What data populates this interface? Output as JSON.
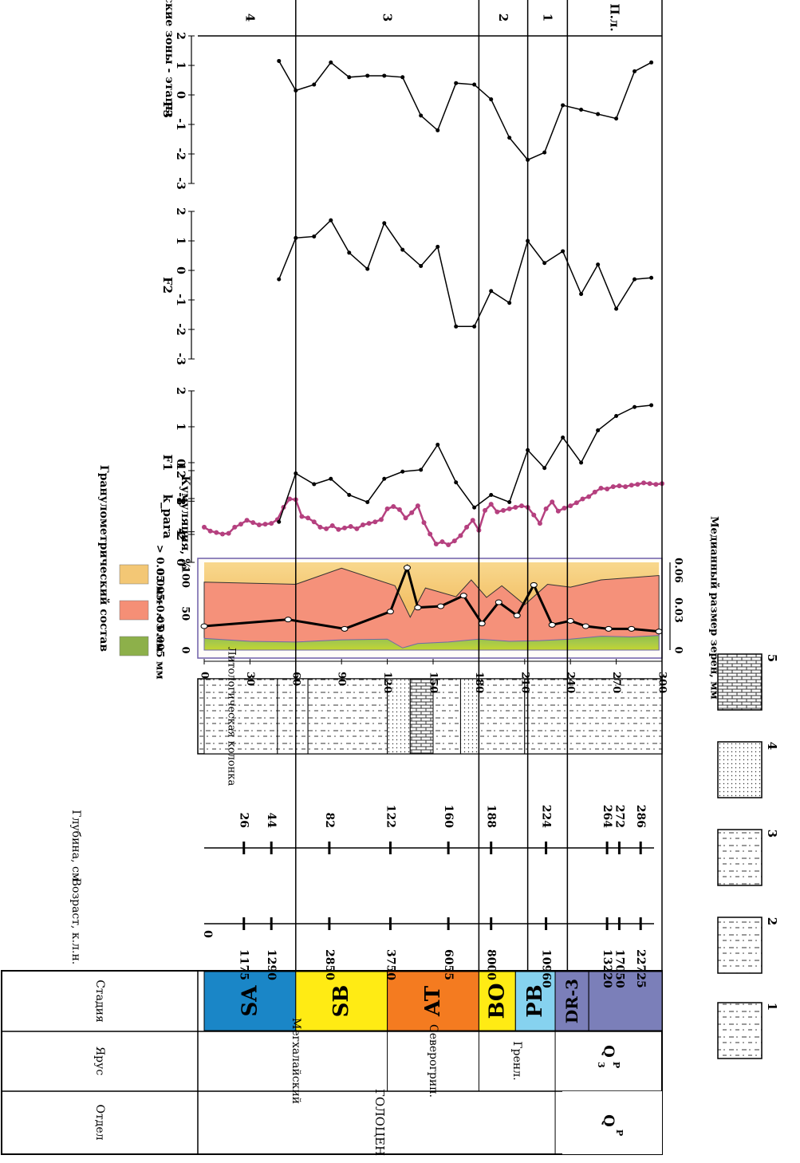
{
  "header_labels": {
    "otdel": "Отдел",
    "yarus": "Ярус",
    "stadiya": "Стадия",
    "vozrast": "Возраст, к.л.н.",
    "glubina": "Глубина, см",
    "lito_column": "Литологическая колонка",
    "zones": "Литологические зоны - этапы"
  },
  "otdel": {
    "holocene": "ГОЛОЦЕН",
    "pleistocene_main": "Q",
    "pleistocene_sub": "P"
  },
  "yarus": {
    "meghalayan": "Мегхалайский",
    "northgrippian": "Северогрип.",
    "greenlandian": "Гренл.",
    "pleistocene_main": "Q",
    "pleistocene_sup": "3",
    "pleistocene_sub": "P"
  },
  "stages": [
    {
      "label": "SA",
      "color": "#1a86c7",
      "from": 0,
      "to": 60
    },
    {
      "label": "SB",
      "color": "#ffeb14",
      "from": 60,
      "to": 120
    },
    {
      "label": "AT",
      "color": "#f47b20",
      "from": 120,
      "to": 180
    },
    {
      "label": "BO",
      "color": "#ffeb14",
      "from": 180,
      "to": 204
    },
    {
      "label": "PB",
      "color": "#86d2ef",
      "from": 204,
      "to": 230
    },
    {
      "label": "DR-3",
      "color": "#7b7fb9",
      "from": 230,
      "to": 252
    },
    {
      "label": "",
      "color": "#7b7fb9",
      "from": 252,
      "to": 300
    }
  ],
  "dating": [
    {
      "age": "1175",
      "depth": "26"
    },
    {
      "age": "1290",
      "depth": "44"
    },
    {
      "age": "2850",
      "depth": "82"
    },
    {
      "age": "3750",
      "depth": "122"
    },
    {
      "age": "6055",
      "depth": "160"
    },
    {
      "age": "8000",
      "depth": "188"
    },
    {
      "age": "10960",
      "depth": "224"
    },
    {
      "age": "13220",
      "depth": "264"
    },
    {
      "age": "17050",
      "depth": "272"
    },
    {
      "age": "22725",
      "depth": "286"
    }
  ],
  "age_zero": "0",
  "lithology_legend": {
    "title": "Литологическая колонка",
    "items": [
      "1",
      "2",
      "3",
      "4",
      "5"
    ]
  },
  "granulometry_legend": {
    "title": "Гранулометрический состав",
    "items": [
      {
        "label": "> 0.05 мм",
        "color": "#f3c775"
      },
      {
        "label": "0.005-0.05 мм",
        "color": "#f58f76"
      },
      {
        "label": "< 0.005 мм",
        "color": "#8db04a"
      }
    ]
  },
  "chart_data": [
    {
      "type": "area",
      "title": "",
      "ylabel": "Кумуляция, %",
      "xlabel": "Глубина, см",
      "secondary_axis_label": "Медианный размер зерен, мм",
      "depth_ticks": [
        "0",
        "30",
        "60",
        "90",
        "120",
        "150",
        "180",
        "210",
        "240",
        "270",
        "300"
      ],
      "cum_ticks": [
        "0",
        "50",
        "100"
      ],
      "median_ticks": [
        "0",
        "0.03",
        "0.06"
      ],
      "xlim": [
        0,
        300
      ],
      "ylim": [
        0,
        120
      ],
      "series": [
        {
          "name": "< 0.005 мм",
          "x": [
            0,
            30,
            60,
            90,
            120,
            130,
            140,
            160,
            180,
            200,
            220,
            240,
            260,
            280,
            298
          ],
          "values": [
            16,
            12,
            11,
            14,
            15,
            3,
            9,
            11,
            15,
            12,
            13,
            15,
            19,
            18,
            20
          ]
        },
        {
          "name": "0.005-0.05 мм",
          "x": [
            0,
            60,
            90,
            125,
            135,
            145,
            165,
            175,
            185,
            195,
            210,
            225,
            240,
            260,
            298
          ],
          "values": [
            93,
            90,
            112,
            88,
            45,
            85,
            73,
            96,
            72,
            88,
            62,
            90,
            86,
            96,
            102
          ]
        },
        {
          "name": "Медианный размер зерен, мм",
          "x": [
            0,
            55,
            92,
            122,
            133,
            140,
            155,
            170,
            182,
            193,
            205,
            216,
            228,
            240,
            250,
            265,
            280,
            298
          ],
          "values": [
            0.018,
            0.023,
            0.016,
            0.029,
            0.062,
            0.032,
            0.033,
            0.041,
            0.02,
            0.036,
            0.026,
            0.049,
            0.019,
            0.022,
            0.018,
            0.016,
            0.016,
            0.014
          ]
        }
      ]
    },
    {
      "type": "line",
      "title": "",
      "ylabel": "k_para",
      "ylim": [
        0,
        12
      ],
      "ticks": [
        "0",
        "4",
        "8",
        "12"
      ],
      "color": "#b5407f",
      "x": [
        0,
        4,
        8,
        12,
        16,
        20,
        24,
        28,
        32,
        36,
        40,
        44,
        48,
        52,
        56,
        60,
        64,
        68,
        72,
        76,
        80,
        84,
        88,
        92,
        96,
        100,
        104,
        108,
        112,
        116,
        120,
        124,
        128,
        132,
        136,
        140,
        144,
        148,
        152,
        156,
        160,
        164,
        168,
        172,
        176,
        180,
        184,
        188,
        192,
        196,
        200,
        204,
        208,
        212,
        216,
        220,
        224,
        228,
        232,
        236,
        240,
        244,
        248,
        252,
        256,
        260,
        264,
        268,
        272,
        276,
        280,
        284,
        288,
        292,
        296,
        300
      ],
      "values": [
        4.6,
        4.1,
        3.9,
        3.7,
        3.8,
        4.6,
        5.0,
        5.5,
        5.2,
        4.9,
        5.0,
        5.1,
        5.6,
        7.2,
        8.3,
        8.2,
        6.0,
        5.8,
        5.3,
        4.6,
        4.4,
        4.8,
        4.3,
        4.5,
        4.7,
        4.4,
        4.9,
        5.1,
        5.3,
        5.6,
        7.0,
        7.3,
        6.9,
        5.8,
        6.5,
        7.4,
        5.2,
        3.7,
        2.4,
        2.7,
        2.3,
        2.8,
        3.5,
        4.6,
        5.5,
        4.2,
        6.8,
        7.6,
        6.6,
        6.8,
        7.0,
        7.2,
        7.4,
        7.2,
        6.2,
        5.1,
        7.0,
        7.9,
        6.7,
        7.1,
        7.4,
        7.8,
        8.3,
        8.6,
        9.2,
        9.7,
        9.6,
        9.9,
        10.0,
        9.9,
        10.1,
        10.2,
        10.4,
        10.3,
        10.2,
        10.3
      ]
    },
    {
      "type": "line",
      "ylabel": "F1",
      "ylim": [
        -2,
        2
      ],
      "ticks": [
        "-2",
        "-1",
        "0",
        "1",
        "2"
      ],
      "x": [
        49,
        60,
        72,
        83,
        95,
        107,
        118,
        130,
        142,
        153,
        165,
        177,
        188,
        200,
        212,
        223,
        235,
        247,
        258,
        270,
        282,
        293
      ],
      "values": [
        -1.65,
        -0.3,
        -0.6,
        -0.45,
        -0.9,
        -1.1,
        -0.45,
        -0.25,
        -0.2,
        0.5,
        -0.55,
        -1.25,
        -0.9,
        -1.1,
        0.35,
        -0.15,
        0.7,
        0.0,
        0.9,
        1.3,
        1.55,
        1.6
      ]
    },
    {
      "type": "line",
      "ylabel": "F2",
      "ylim": [
        -3,
        2
      ],
      "ticks": [
        "-3",
        "-2",
        "-1",
        "0",
        "1",
        "2"
      ],
      "x": [
        49,
        60,
        72,
        83,
        95,
        107,
        118,
        130,
        142,
        153,
        165,
        177,
        188,
        200,
        212,
        223,
        235,
        247,
        258,
        270,
        282,
        293
      ],
      "values": [
        -0.3,
        1.1,
        1.15,
        1.7,
        0.6,
        0.05,
        1.6,
        0.7,
        0.15,
        0.8,
        -1.9,
        -1.9,
        -0.7,
        -1.1,
        1.0,
        0.25,
        0.65,
        -0.8,
        0.2,
        -1.3,
        -0.3,
        -0.25
      ]
    },
    {
      "type": "line",
      "ylabel": "F3",
      "ylim": [
        -3,
        2
      ],
      "ticks": [
        "-3",
        "-2",
        "-1",
        "0",
        "1",
        "2"
      ],
      "x": [
        49,
        60,
        72,
        83,
        95,
        107,
        118,
        130,
        142,
        153,
        165,
        177,
        188,
        200,
        212,
        223,
        235,
        247,
        258,
        270,
        282,
        293
      ],
      "values": [
        1.15,
        0.15,
        0.35,
        1.1,
        0.6,
        0.65,
        0.65,
        0.6,
        -0.7,
        -1.2,
        0.4,
        0.35,
        -0.15,
        -1.45,
        -2.2,
        -1.95,
        -0.35,
        -0.5,
        -0.65,
        -0.8,
        0.8,
        1.1
      ]
    }
  ],
  "zones": [
    {
      "label": "4",
      "from": 0,
      "to": 60
    },
    {
      "label": "3",
      "from": 60,
      "to": 180
    },
    {
      "label": "2",
      "from": 180,
      "to": 212
    },
    {
      "label": "1",
      "from": 212,
      "to": 238
    },
    {
      "label": "П.л.",
      "from": 238,
      "to": 300
    }
  ],
  "zone_boundaries": [
    60,
    180,
    212,
    238
  ]
}
